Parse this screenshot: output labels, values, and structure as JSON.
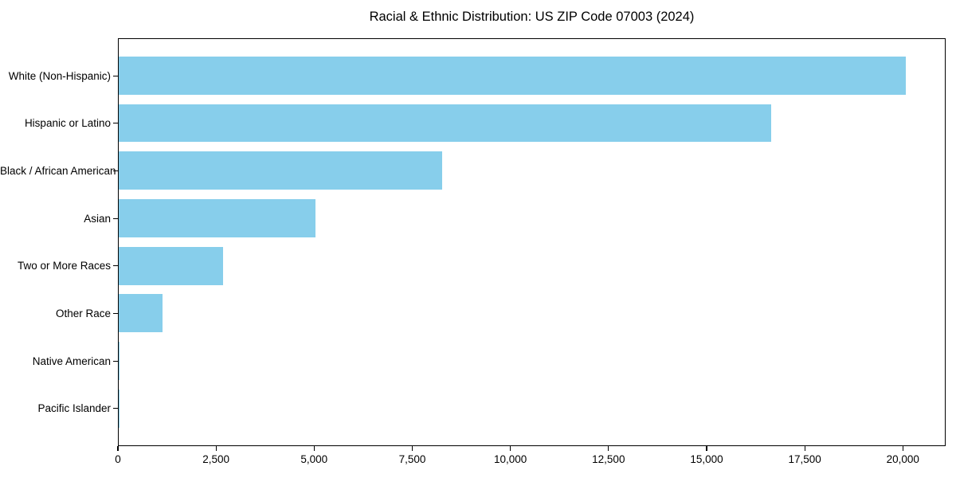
{
  "window": {
    "background_color": "#ffffff"
  },
  "chart_data": {
    "type": "bar",
    "orientation": "horizontal",
    "title": "Racial & Ethnic Distribution: US ZIP Code 07003 (2024)",
    "xlabel": "",
    "ylabel": "",
    "categories": [
      "White (Non-Hispanic)",
      "Hispanic or Latino",
      "Black / African American",
      "Asian",
      "Two or More Races",
      "Other Race",
      "Native American",
      "Pacific Islander"
    ],
    "values": [
      20060,
      16620,
      8250,
      5010,
      2650,
      1120,
      30,
      10
    ],
    "xlim": [
      0,
      21090
    ],
    "x_ticks": [
      0,
      2500,
      5000,
      7500,
      10000,
      12500,
      15000,
      17500,
      20000
    ],
    "x_tick_labels": [
      "0",
      "2,500",
      "5,000",
      "7,500",
      "10,000",
      "12,500",
      "15,000",
      "17,500",
      "20,000"
    ],
    "bar_color": "#87CEEB",
    "frame_color": "#000000",
    "text_color": "#000000",
    "grid": false,
    "legend": false
  }
}
